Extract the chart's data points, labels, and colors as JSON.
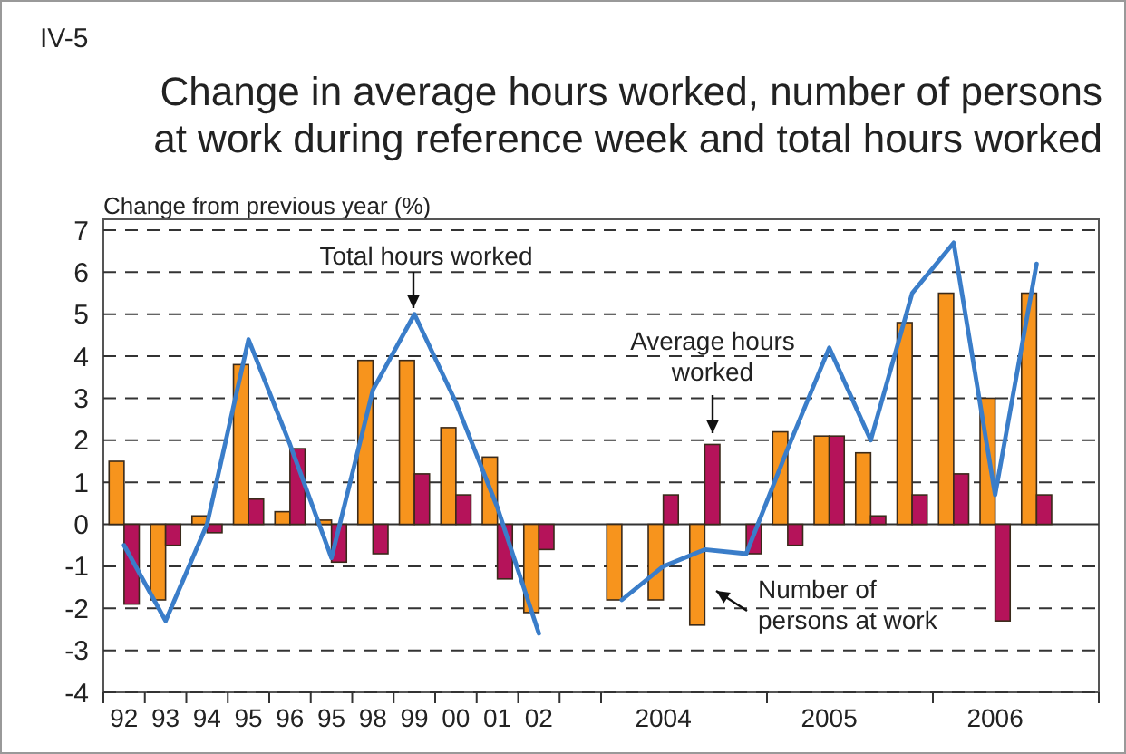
{
  "chart_data": {
    "type": "bar",
    "title": "Change in average hours worked, number of persons\nat work during reference week and total hours worked",
    "ylabel": "Change from previous year (%)",
    "annotations": [
      "IV-5"
    ],
    "categories": [
      "92",
      "93",
      "94",
      "95",
      "96",
      "95",
      "98",
      "99",
      "00",
      "01",
      "02",
      null,
      null,
      "2004",
      null,
      null,
      null,
      "2005",
      null,
      null,
      null,
      "2006",
      null,
      null
    ],
    "series": [
      {
        "name": "Number of persons at work",
        "color": "#f7941d",
        "values": [
          1.5,
          -1.8,
          0.2,
          3.8,
          0.3,
          0.1,
          3.9,
          3.9,
          2.3,
          1.6,
          -2.1,
          null,
          -1.8,
          -1.8,
          -2.4,
          null,
          2.2,
          2.1,
          1.7,
          4.8,
          5.5,
          3.0,
          5.5,
          null
        ]
      },
      {
        "name": "Average hours worked",
        "color": "#b5135a",
        "values": [
          -1.9,
          -0.5,
          -0.2,
          0.6,
          1.8,
          -0.9,
          -0.7,
          1.2,
          0.7,
          -1.3,
          -0.6,
          null,
          null,
          0.7,
          1.9,
          -0.7,
          -0.5,
          2.1,
          0.2,
          0.7,
          1.2,
          -2.3,
          0.7,
          null
        ]
      },
      {
        "name": "Total hours worked",
        "type": "line",
        "color": "#3a7dc9",
        "values": [
          -0.5,
          -2.3,
          0.0,
          4.4,
          1.9,
          -0.8,
          3.2,
          5.0,
          2.9,
          0.4,
          -2.6,
          null,
          -1.8,
          -1.0,
          -0.6,
          -0.7,
          1.8,
          4.2,
          2.0,
          5.5,
          6.7,
          0.7,
          6.2,
          null
        ]
      }
    ],
    "ylim": [
      -4,
      7
    ],
    "yticks": [
      -4,
      -3,
      -2,
      -1,
      0,
      1,
      2,
      3,
      4,
      5,
      6,
      7
    ],
    "grid": "y",
    "legend": false
  }
}
